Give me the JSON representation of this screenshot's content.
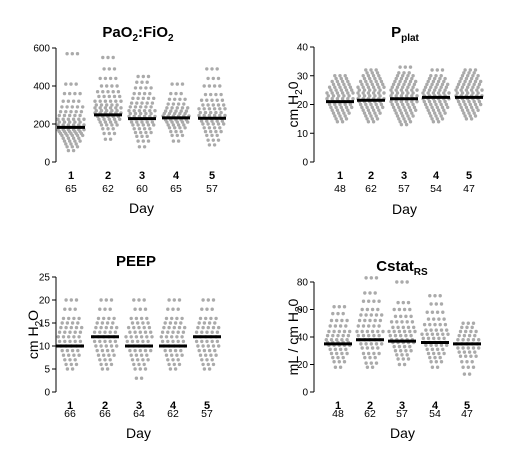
{
  "chart_data": [
    {
      "type": "scatter",
      "title": "PaO",
      "title_sub1": "2",
      "title_mid": ":FiO",
      "title_sub2": "2",
      "xlabel": "Day",
      "ylabel": "",
      "ylim": [
        0,
        600
      ],
      "yticks": [
        "0",
        "200",
        "400",
        "600"
      ],
      "categories": [
        "1",
        "2",
        "3",
        "4",
        "5"
      ],
      "counts": [
        "65",
        "62",
        "60",
        "65",
        "57"
      ],
      "medians": [
        182,
        248,
        228,
        232,
        230
      ],
      "spread": [
        [
          60,
          80,
          95,
          110,
          125,
          140,
          150,
          160,
          170,
          182,
          195,
          210,
          225,
          245,
          265,
          290,
          320,
          360,
          410,
          570
        ],
        [
          120,
          150,
          175,
          195,
          210,
          225,
          240,
          248,
          258,
          270,
          285,
          300,
          320,
          345,
          370,
          400,
          440,
          490,
          550
        ],
        [
          80,
          110,
          135,
          155,
          175,
          195,
          210,
          228,
          240,
          255,
          270,
          290,
          310,
          335,
          360,
          390,
          420,
          450
        ],
        [
          110,
          140,
          160,
          180,
          195,
          210,
          222,
          232,
          242,
          255,
          268,
          285,
          305,
          330,
          360,
          410
        ],
        [
          90,
          115,
          140,
          160,
          180,
          200,
          215,
          230,
          245,
          260,
          280,
          300,
          325,
          355,
          400,
          440,
          490
        ]
      ],
      "point_color": "#aaaaaa",
      "median_color": "#000000"
    },
    {
      "type": "scatter",
      "title": "P",
      "title_sub1": "plat",
      "xlabel": "Day",
      "ylabel": "cm H",
      "ylabel_sub": "2",
      "ylabel_end": "0",
      "ylim": [
        0,
        40
      ],
      "yticks": [
        "0",
        "10",
        "20",
        "30",
        "40"
      ],
      "categories": [
        "1",
        "2",
        "3",
        "4",
        "5"
      ],
      "counts": [
        "48",
        "62",
        "57",
        "54",
        "47"
      ],
      "medians": [
        21,
        21.5,
        22,
        22.5,
        22.5
      ],
      "spread": [
        [
          14,
          15,
          16,
          17,
          18,
          19,
          20,
          21,
          22,
          23,
          24,
          25,
          26,
          27,
          28,
          29,
          30
        ],
        [
          14,
          15,
          16,
          17,
          18,
          19,
          20,
          21,
          22,
          23,
          24,
          25,
          26,
          27,
          28,
          29,
          30,
          31,
          32
        ],
        [
          13,
          14,
          15,
          16,
          17,
          18,
          19,
          20,
          21,
          22,
          23,
          24,
          25,
          26,
          27,
          28,
          29,
          30,
          31,
          33
        ],
        [
          14,
          15,
          16,
          17,
          18,
          19,
          20,
          21,
          22,
          23,
          24,
          25,
          26,
          27,
          28,
          29,
          30,
          32
        ],
        [
          15,
          16,
          17,
          18,
          19,
          20,
          21,
          22,
          23,
          24,
          25,
          26,
          27,
          28,
          29,
          30,
          31,
          32
        ]
      ],
      "point_color": "#aaaaaa",
      "median_color": "#000000"
    },
    {
      "type": "scatter",
      "title": "PEEP",
      "xlabel": "Day",
      "ylabel": "cm H",
      "ylabel_sub": "2",
      "ylabel_end": "O",
      "ylim": [
        0,
        25
      ],
      "yticks": [
        "0",
        "5",
        "10",
        "15",
        "20",
        "25"
      ],
      "categories": [
        "1",
        "2",
        "3",
        "4",
        "5"
      ],
      "counts": [
        "66",
        "66",
        "64",
        "62",
        "57"
      ],
      "medians": [
        10,
        12,
        10,
        10,
        12
      ],
      "spread": [
        [
          5,
          6,
          7,
          8,
          9,
          10,
          11,
          12,
          13,
          14,
          15,
          16,
          18,
          20
        ],
        [
          5,
          6,
          7,
          8,
          9,
          10,
          11,
          12,
          13,
          14,
          15,
          16,
          18,
          20
        ],
        [
          3,
          5,
          6,
          7,
          8,
          9,
          10,
          11,
          12,
          13,
          14,
          15,
          16,
          18,
          20
        ],
        [
          5,
          6,
          7,
          8,
          9,
          10,
          11,
          12,
          13,
          14,
          15,
          16,
          18,
          20
        ],
        [
          5,
          6,
          7,
          8,
          9,
          10,
          11,
          12,
          13,
          14,
          15,
          16,
          18,
          20
        ]
      ],
      "point_color": "#aaaaaa",
      "median_color": "#000000"
    },
    {
      "type": "scatter",
      "title": "Cstat",
      "title_sub1": "RS",
      "xlabel": "Day",
      "ylabel": "mL / cm H",
      "ylabel_sub": "2",
      "ylabel_end": "0",
      "ylim": [
        0,
        80
      ],
      "yticks": [
        "0",
        "20",
        "40",
        "60",
        "80"
      ],
      "categories": [
        "1",
        "2",
        "3",
        "4",
        "5"
      ],
      "counts": [
        "48",
        "62",
        "57",
        "54",
        "47"
      ],
      "medians": [
        35,
        38,
        37,
        36,
        35
      ],
      "spread": [
        [
          18,
          22,
          25,
          28,
          31,
          34,
          36,
          38,
          41,
          44,
          48,
          52,
          57,
          62
        ],
        [
          18,
          21,
          25,
          28,
          32,
          35,
          38,
          41,
          44,
          48,
          52,
          56,
          60,
          66,
          72,
          83
        ],
        [
          20,
          24,
          27,
          30,
          33,
          36,
          38,
          41,
          44,
          47,
          51,
          55,
          60,
          65,
          80
        ],
        [
          18,
          22,
          25,
          28,
          31,
          34,
          36,
          39,
          42,
          45,
          49,
          53,
          58,
          64,
          70
        ],
        [
          13,
          18,
          22,
          26,
          29,
          32,
          35,
          38,
          41,
          44,
          47,
          50
        ]
      ],
      "point_color": "#aaaaaa",
      "median_color": "#000000"
    }
  ]
}
